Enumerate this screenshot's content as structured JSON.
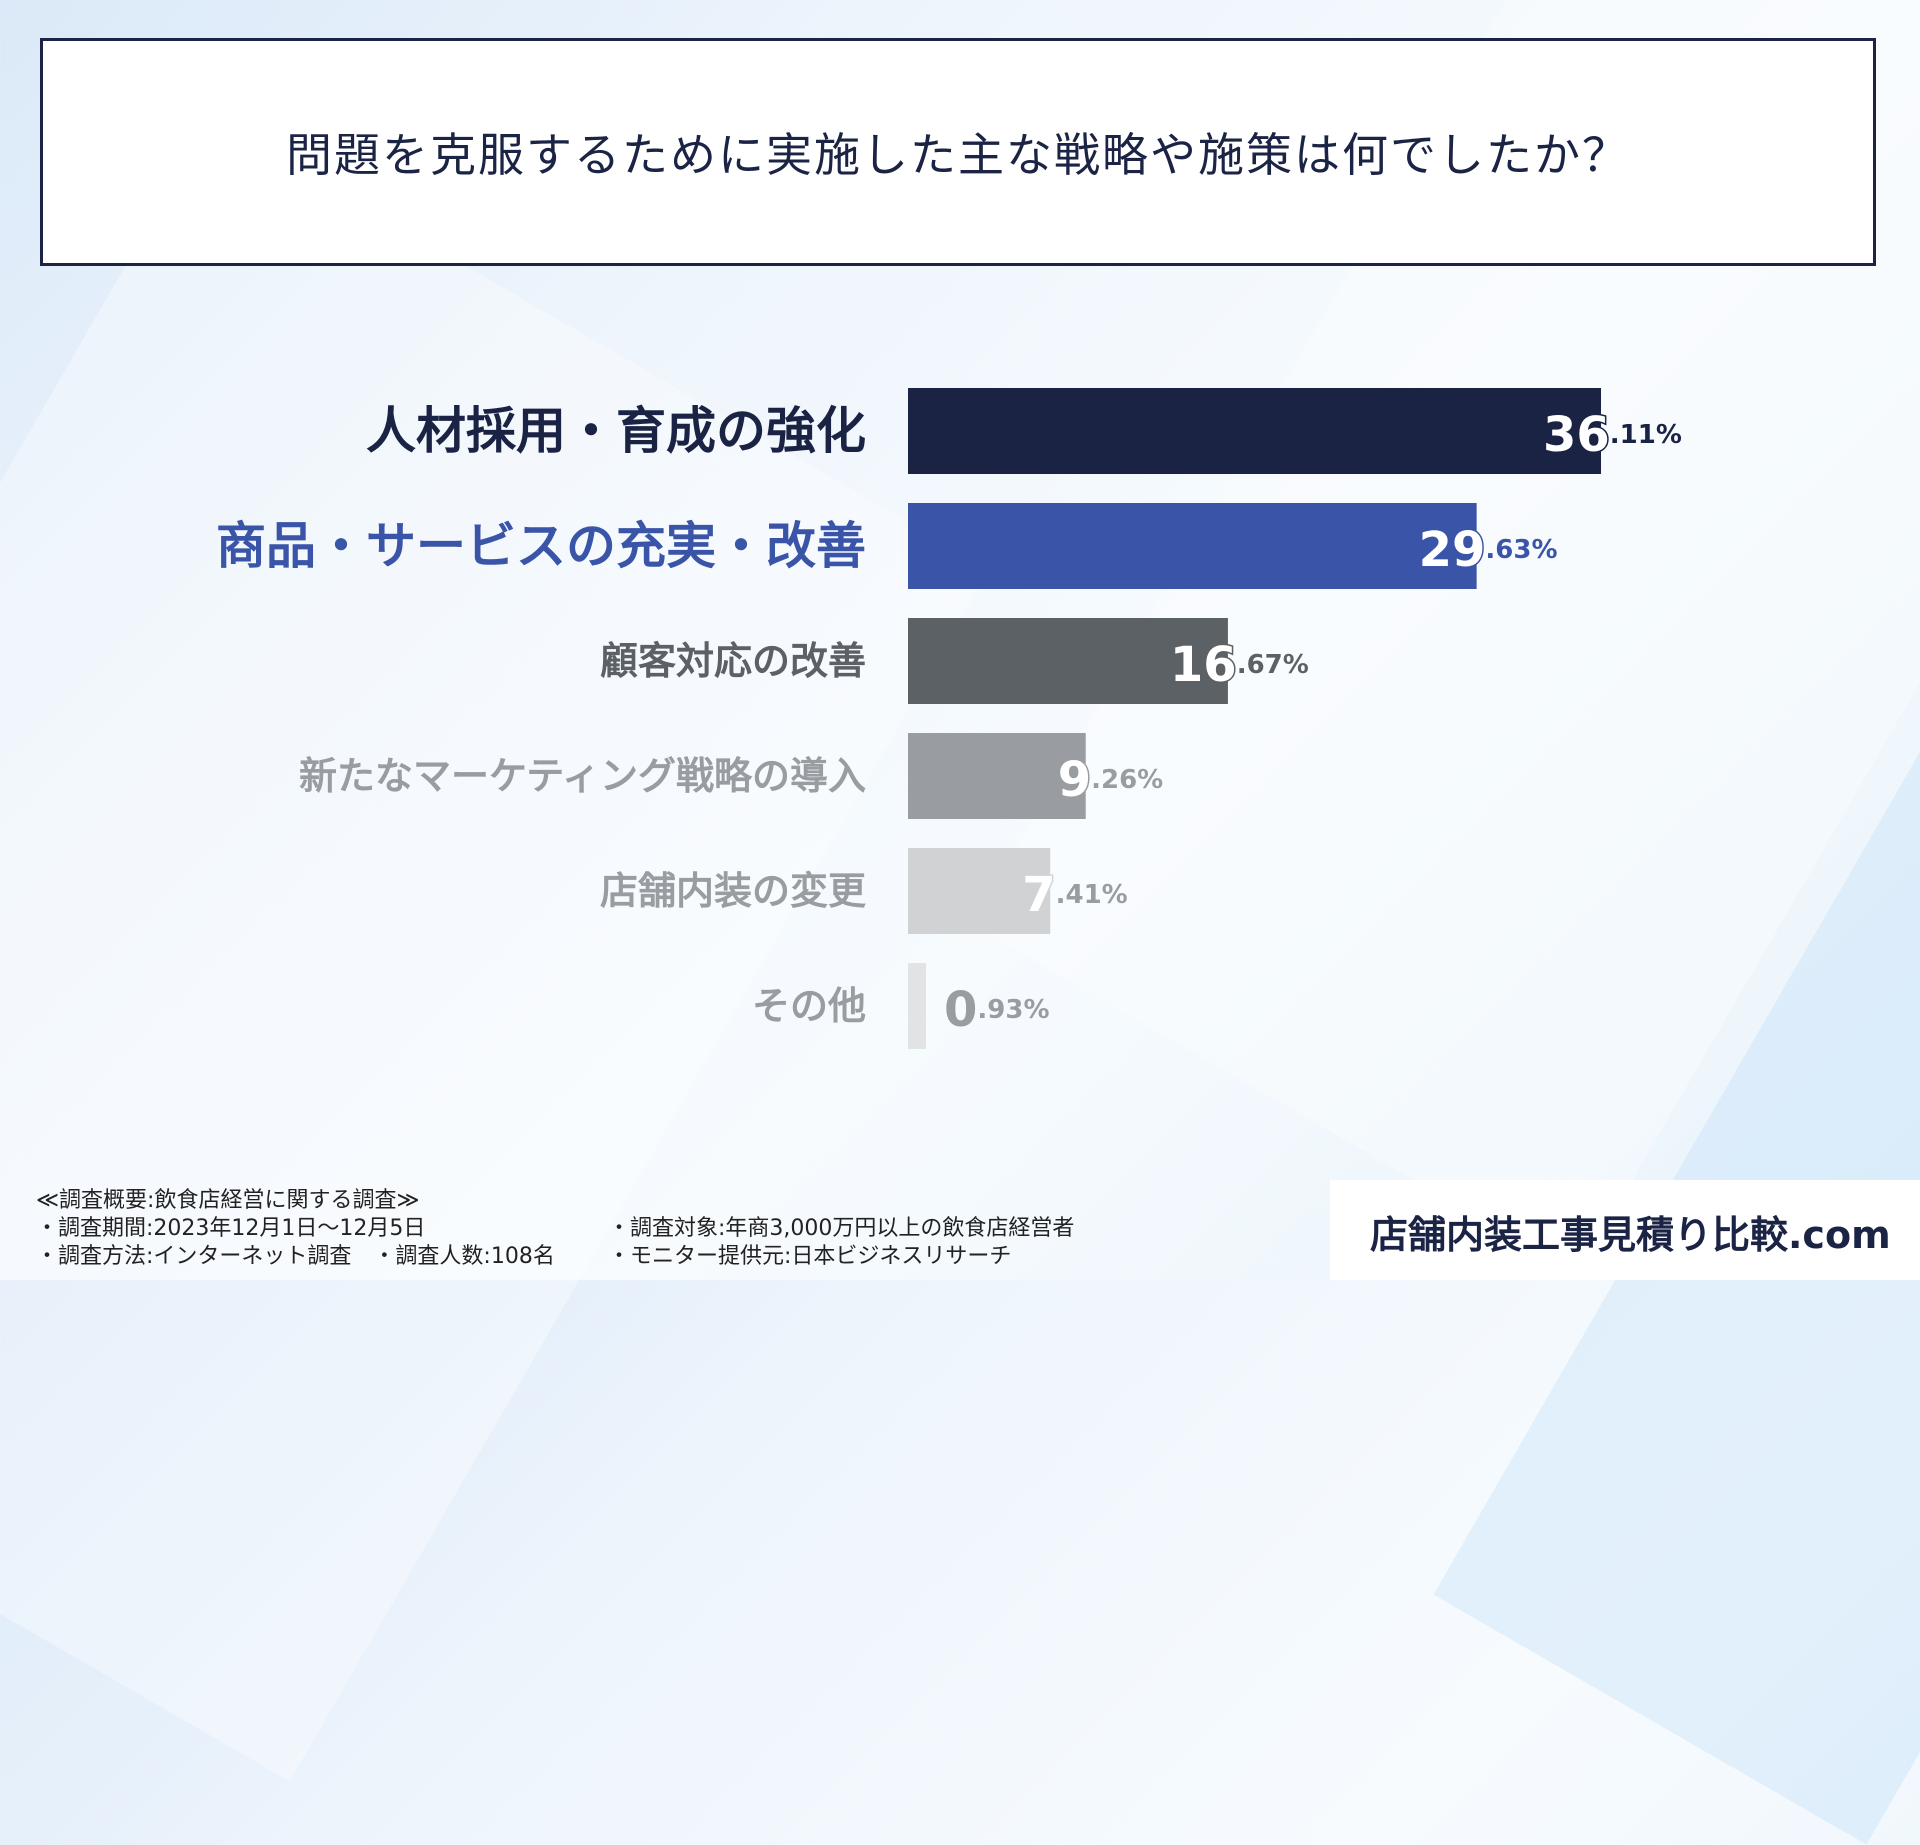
{
  "title": "問題を克服するために実施した主な戦略や施策は何でしたか？",
  "chart_data": {
    "type": "bar",
    "orientation": "horizontal",
    "categories": [
      "人材採用・育成の強化",
      "商品・サービスの充実・改善",
      "顧客対応の改善",
      "新たなマーケティング戦略の導入",
      "店舗内装の変更",
      "その他"
    ],
    "values": [
      36.11,
      29.63,
      16.67,
      9.26,
      7.41,
      0.93
    ],
    "value_labels": [
      {
        "int": "36",
        "dec": ".11%"
      },
      {
        "int": "29",
        "dec": ".63%"
      },
      {
        "int": "16",
        "dec": ".67%"
      },
      {
        "int": "9",
        "dec": ".26%"
      },
      {
        "int": "7",
        "dec": ".41%"
      },
      {
        "int": "0",
        "dec": ".93%"
      }
    ],
    "colors": [
      "#1b2345",
      "#3a55a8",
      "#5c6165",
      "#999da1",
      "#d1d2d4",
      "#e2e3e5"
    ],
    "label_colors": [
      "#1b2345",
      "#3a55a8",
      "#5c6165",
      "#999da1",
      "#999da1",
      "#999da1"
    ],
    "xlim": [
      0,
      40
    ],
    "xlabel": "",
    "ylabel": "",
    "grid": false,
    "legend": "none"
  },
  "survey": {
    "overview": "≪調査概要:飲食店経営に関する調査≫",
    "period": "・調査期間:2023年12月1日〜12月5日",
    "method": "・調査方法:インターネット調査　・調査人数:108名",
    "target": "・調査対象:年商3,000万円以上の飲食店経営者",
    "monitor": "・モニター提供元:日本ビジネスリサーチ"
  },
  "brand": "店舗内装工事見積り比較.com"
}
